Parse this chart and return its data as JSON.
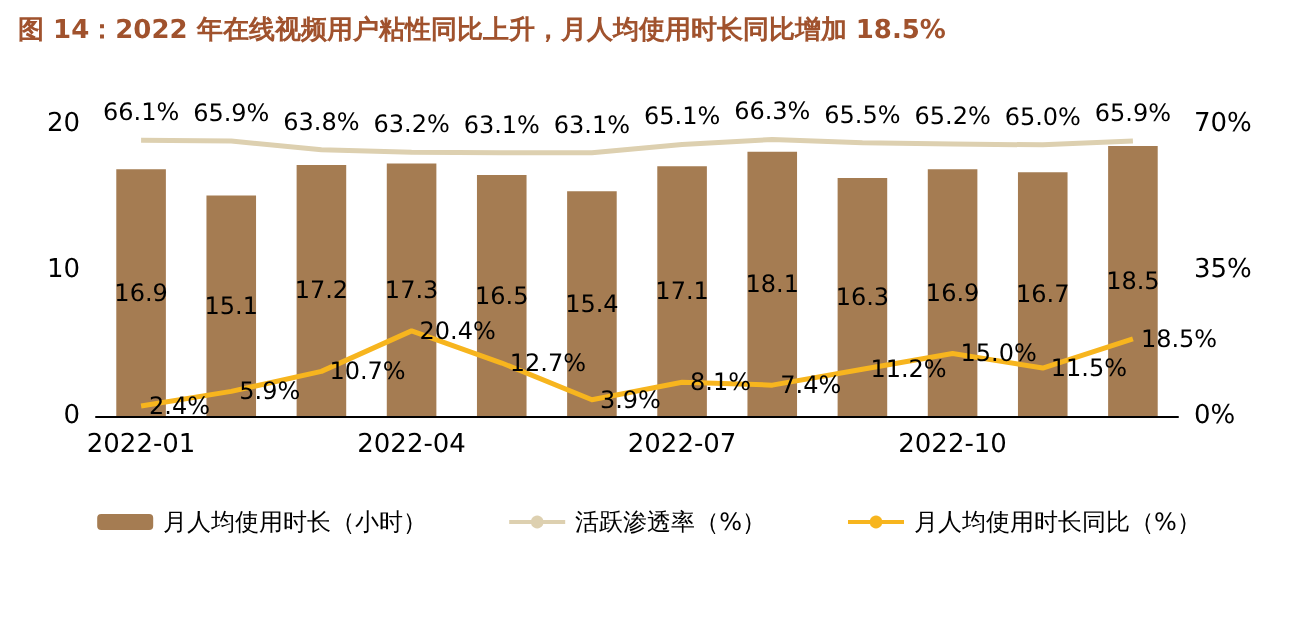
{
  "chart_data": {
    "type": "bar",
    "title": "图 14：2022 年在线视频用户粘性同比上升，月人均使用时长同比增加 18.5%",
    "categories": [
      "2022-01",
      null,
      null,
      "2022-04",
      null,
      null,
      "2022-07",
      null,
      null,
      "2022-10",
      null,
      null
    ],
    "series": [
      {
        "name": "月人均使用时长（小时）",
        "color": "#a57c52",
        "values": [
          16.9,
          15.1,
          17.2,
          17.3,
          16.5,
          15.4,
          17.1,
          18.1,
          16.3,
          16.9,
          16.7,
          18.5
        ],
        "value_labels": [
          "16.9",
          "15.1",
          "17.2",
          "17.3",
          "16.5",
          "15.4",
          "17.1",
          "18.1",
          "16.3",
          "16.9",
          "16.7",
          "18.5"
        ]
      },
      {
        "name": "活跃渗透率（%）",
        "type": "line",
        "axis": "y2",
        "color": "#ddd0b0",
        "values": [
          66.1,
          65.9,
          63.8,
          63.2,
          63.1,
          63.1,
          65.1,
          66.3,
          65.5,
          65.2,
          65.0,
          65.9
        ],
        "value_labels": [
          "66.1%",
          "65.9%",
          "63.8%",
          "63.2%",
          "63.1%",
          "63.1%",
          "65.1%",
          "66.3%",
          "65.5%",
          "65.2%",
          "65.0%",
          "65.9%"
        ]
      },
      {
        "name": "月人均使用时长同比（%）",
        "type": "line",
        "axis": "y2",
        "color": "#f7b51e",
        "values": [
          2.4,
          5.9,
          10.7,
          20.4,
          12.7,
          3.9,
          8.1,
          7.4,
          11.2,
          15.0,
          11.5,
          18.5
        ],
        "value_labels": [
          "2.4%",
          "5.9%",
          "10.7%",
          "20.4%",
          "12.7%",
          "3.9%",
          "8.1%",
          "7.4%",
          "11.2%",
          "15.0%",
          "11.5%",
          "18.5%"
        ]
      }
    ],
    "ylim": [
      0,
      20
    ],
    "yticks": [
      0,
      10,
      20
    ],
    "y2lim": [
      0,
      70
    ],
    "y2ticks": [
      {
        "value": 0,
        "label": "0%"
      },
      {
        "value": 35,
        "label": "35%"
      },
      {
        "value": 70,
        "label": "70%"
      }
    ],
    "legend": "bottom",
    "grid": false,
    "marker": "none",
    "line_style": "solid"
  }
}
